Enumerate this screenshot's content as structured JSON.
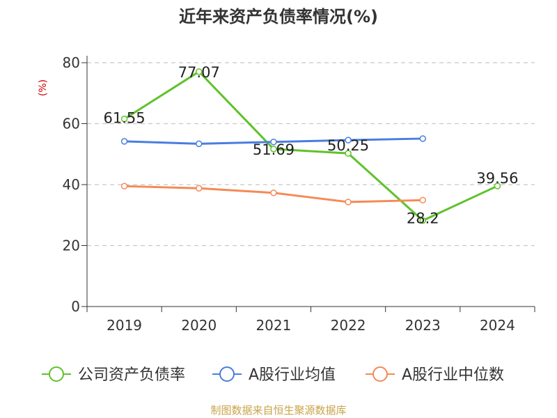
{
  "chart_data": {
    "type": "line",
    "title": "近年来资产负债率情况(%)",
    "ylabel": "(%)",
    "xlabel": "",
    "categories": [
      "2019",
      "2020",
      "2021",
      "2022",
      "2023",
      "2024"
    ],
    "ylim": [
      0,
      80
    ],
    "yticks": [
      0,
      20,
      40,
      60,
      80
    ],
    "grid": true,
    "legend_position": "bottom",
    "series": [
      {
        "name": "公司资产负债率",
        "color": "#5ec22a",
        "values": [
          61.55,
          77.07,
          51.69,
          50.25,
          28.2,
          39.56
        ],
        "labels": [
          "61.55",
          "77.07",
          "51.69",
          "50.25",
          "28.2",
          "39.56"
        ]
      },
      {
        "name": "A股行业均值",
        "color": "#4a7de0",
        "values": [
          54.2,
          53.4,
          54.0,
          54.6,
          55.1,
          null
        ]
      },
      {
        "name": "A股行业中位数",
        "color": "#f48a55",
        "values": [
          39.5,
          38.8,
          37.3,
          34.3,
          34.9,
          null
        ]
      }
    ]
  },
  "source": {
    "text": "制图数据来自恒生聚源数据库",
    "color": "#c8a44a"
  },
  "ylabel_color": "#cc0000"
}
